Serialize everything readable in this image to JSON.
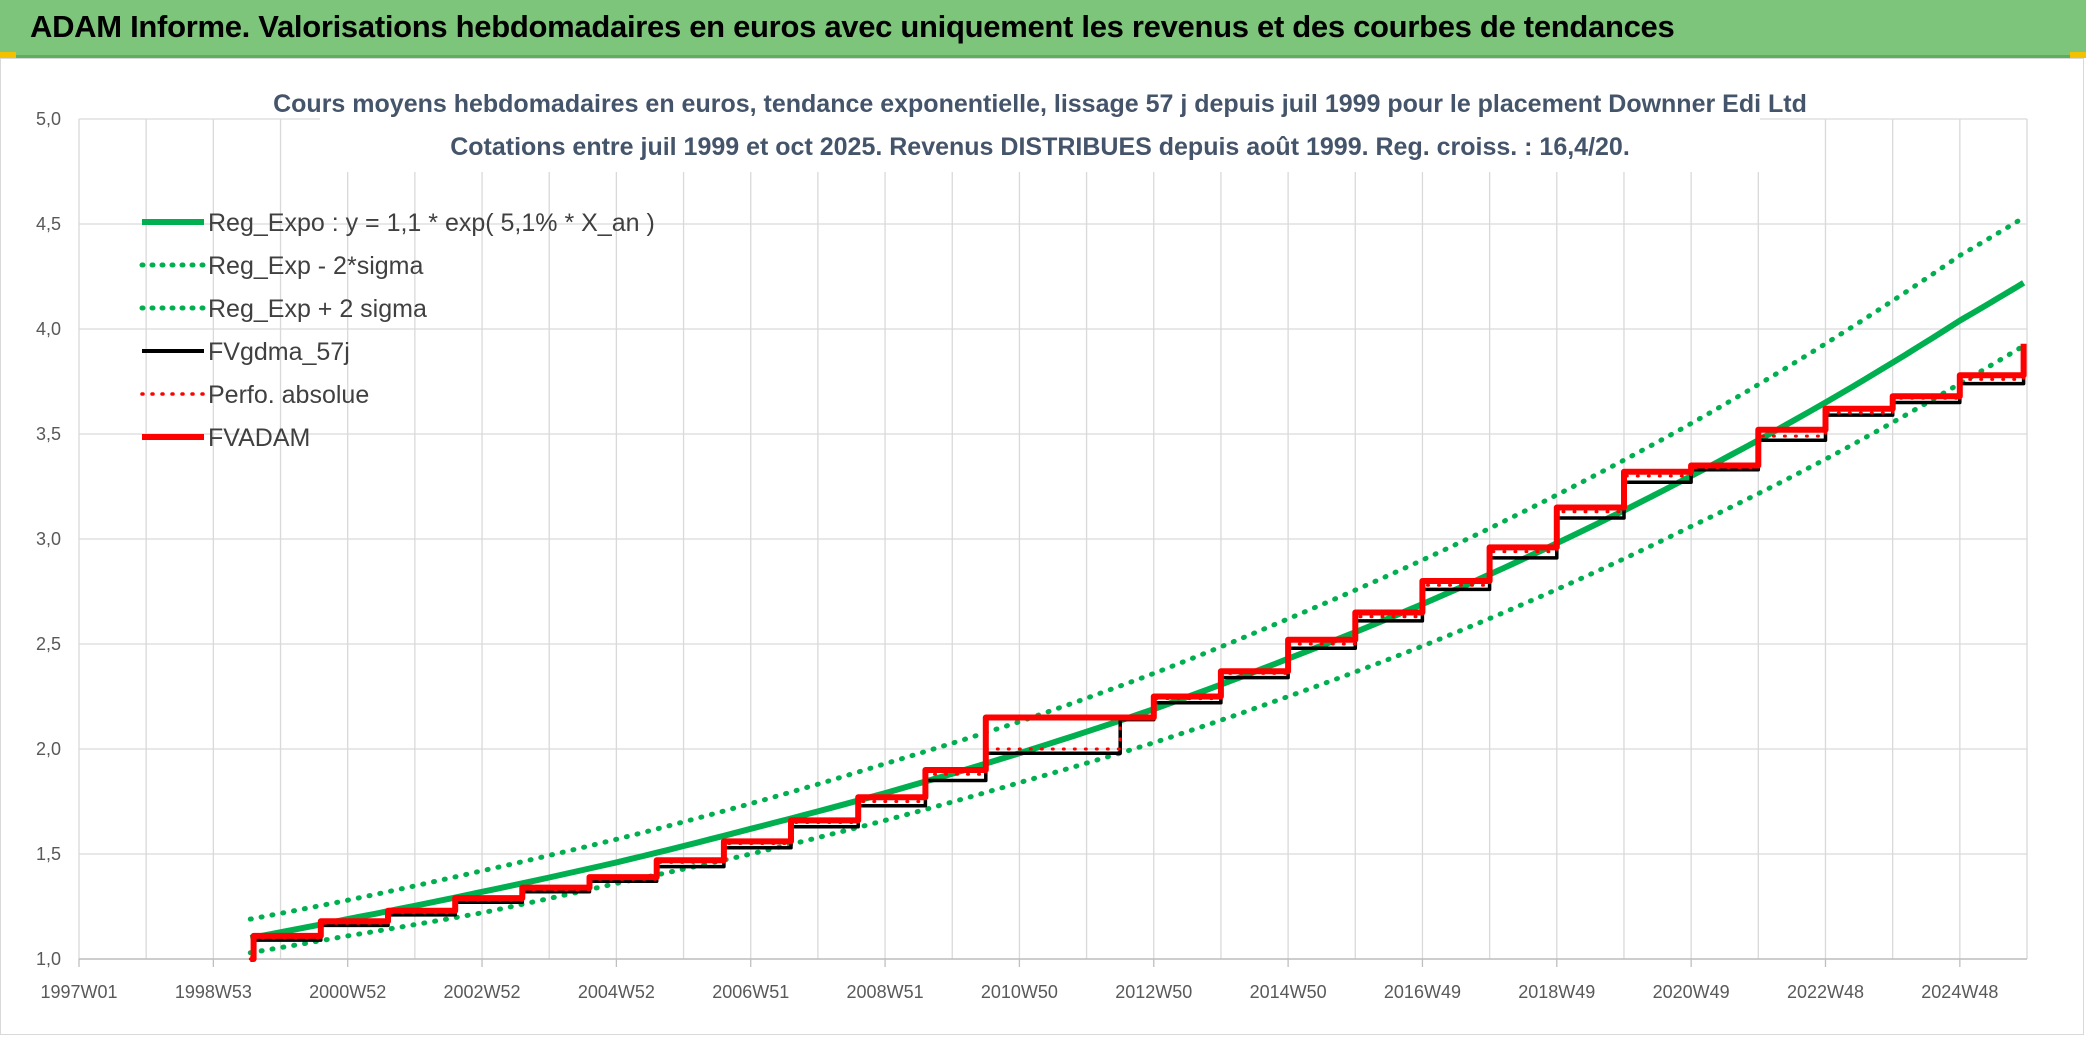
{
  "header": {
    "title": "ADAM Informe. Valorisations hebdomadaires en euros avec uniquement les revenus et des courbes de tendances"
  },
  "chart_data": {
    "type": "line",
    "title": "Cours moyens hebdomadaires en euros, tendance exponentielle, lissage 57 j depuis juil 1999 pour le placement Downner Edi Ltd",
    "subtitle": "Cotations entre juil 1999 et oct 2025. Revenus DISTRIBUES depuis août 1999. Reg. croiss. : 16,4/20.",
    "xlabel": "",
    "ylabel": "",
    "x_tick_labels": [
      "1997W01",
      "1998W53",
      "2000W52",
      "2002W52",
      "2004W52",
      "2006W51",
      "2008W51",
      "2010W50",
      "2012W50",
      "2014W50",
      "2016W49",
      "2018W49",
      "2020W49",
      "2022W48",
      "2024W48"
    ],
    "x_range": [
      1997.0,
      2026.0
    ],
    "y_tick_labels": [
      "1,0",
      "1,5",
      "2,0",
      "2,5",
      "3,0",
      "3,5",
      "4,0",
      "4,5",
      "5,0"
    ],
    "y_range": [
      1.0,
      5.0
    ],
    "grid": true,
    "legend_position": "top-left",
    "series": [
      {
        "name": "Reg_Expo : y = 1,1 * exp( 5,1% *  X_an )",
        "color": "#00b050",
        "style": "solid",
        "x": [
          1999.55,
          2001,
          2003,
          2005,
          2007,
          2009,
          2011,
          2013,
          2015,
          2017,
          2019,
          2021,
          2023,
          2025,
          2025.95
        ],
        "y": [
          1.1,
          1.19,
          1.32,
          1.46,
          1.62,
          1.79,
          1.98,
          2.19,
          2.43,
          2.69,
          2.98,
          3.3,
          3.65,
          4.04,
          4.22
        ]
      },
      {
        "name": "Reg_Exp - 2*sigma",
        "color": "#00b050",
        "style": "dotted",
        "x": [
          1999.55,
          2001,
          2003,
          2005,
          2007,
          2009,
          2011,
          2013,
          2015,
          2017,
          2019,
          2021,
          2023,
          2025,
          2025.95
        ],
        "y": [
          1.03,
          1.11,
          1.22,
          1.36,
          1.5,
          1.66,
          1.84,
          2.03,
          2.25,
          2.49,
          2.76,
          3.06,
          3.38,
          3.74,
          3.92
        ]
      },
      {
        "name": "Reg_Exp + 2 sigma",
        "color": "#00b050",
        "style": "dotted",
        "x": [
          1999.55,
          2001,
          2003,
          2005,
          2007,
          2009,
          2011,
          2013,
          2015,
          2017,
          2019,
          2021,
          2023,
          2025,
          2025.95
        ],
        "y": [
          1.19,
          1.28,
          1.42,
          1.57,
          1.74,
          1.93,
          2.13,
          2.36,
          2.62,
          2.9,
          3.21,
          3.55,
          3.93,
          4.35,
          4.53
        ]
      },
      {
        "name": "FVgdma_57j",
        "color": "#000000",
        "style": "solid",
        "x": [
          1999.55,
          1999.6,
          2000.6,
          2001.6,
          2002.6,
          2003.6,
          2004.6,
          2005.6,
          2006.6,
          2007.6,
          2008.6,
          2009.6,
          2010.5,
          2012.5,
          2013.0,
          2014.0,
          2015.0,
          2016.0,
          2017.0,
          2018.0,
          2019.0,
          2020.0,
          2021.0,
          2022.0,
          2023.0,
          2024.0,
          2025.0,
          2025.95
        ],
        "y": [
          1.0,
          1.09,
          1.16,
          1.21,
          1.27,
          1.32,
          1.37,
          1.44,
          1.53,
          1.63,
          1.73,
          1.85,
          1.98,
          2.14,
          2.22,
          2.34,
          2.48,
          2.61,
          2.76,
          2.91,
          3.1,
          3.27,
          3.33,
          3.47,
          3.59,
          3.65,
          3.74,
          3.9
        ]
      },
      {
        "name": "Perfo. absolue",
        "color": "#ff0000",
        "style": "dotted",
        "x": [
          1999.55,
          1999.6,
          2000.6,
          2001.6,
          2002.6,
          2003.6,
          2004.6,
          2005.6,
          2006.6,
          2007.6,
          2008.6,
          2009.6,
          2010.5,
          2012.5,
          2013.0,
          2014.0,
          2015.0,
          2016.0,
          2017.0,
          2018.0,
          2019.0,
          2020.0,
          2021.0,
          2022.0,
          2023.0,
          2024.0,
          2025.0,
          2025.95
        ],
        "y": [
          1.0,
          1.1,
          1.17,
          1.22,
          1.28,
          1.33,
          1.38,
          1.46,
          1.55,
          1.65,
          1.75,
          1.88,
          2.0,
          2.15,
          2.24,
          2.36,
          2.5,
          2.63,
          2.78,
          2.94,
          3.13,
          3.3,
          3.34,
          3.49,
          3.6,
          3.67,
          3.76,
          3.92
        ]
      },
      {
        "name": "FVADAM",
        "color": "#ff0000",
        "style": "solid",
        "x": [
          1999.55,
          1999.6,
          2000.6,
          2001.6,
          2002.6,
          2003.6,
          2004.6,
          2005.6,
          2006.6,
          2007.6,
          2008.6,
          2009.6,
          2010.5,
          2012.5,
          2013.0,
          2014.0,
          2015.0,
          2016.0,
          2017.0,
          2018.0,
          2019.0,
          2020.0,
          2021.0,
          2022.0,
          2023.0,
          2024.0,
          2025.0,
          2025.95
        ],
        "y": [
          1.0,
          1.11,
          1.18,
          1.23,
          1.29,
          1.34,
          1.39,
          1.47,
          1.56,
          1.66,
          1.77,
          1.9,
          2.15,
          2.15,
          2.25,
          2.37,
          2.52,
          2.65,
          2.8,
          2.96,
          3.15,
          3.32,
          3.35,
          3.52,
          3.62,
          3.68,
          3.78,
          3.93
        ]
      }
    ]
  }
}
